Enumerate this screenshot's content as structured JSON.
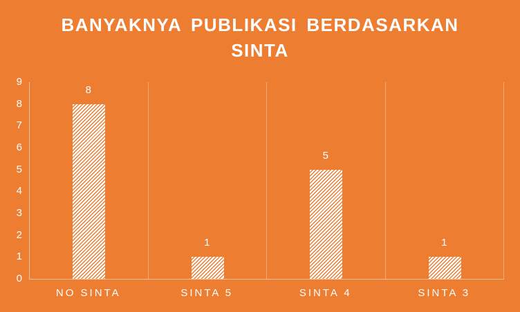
{
  "chart_data": {
    "type": "bar",
    "title": "BANYAKNYA PUBLIKASI BERDASARKAN SINTA",
    "categories": [
      "NO SINTA",
      "SINTA 5",
      "SINTA 4",
      "SINTA 3"
    ],
    "values": [
      8,
      1,
      5,
      1
    ],
    "xlabel": "",
    "ylabel": "",
    "ylim": [
      0,
      9
    ],
    "yticks": [
      0,
      1,
      2,
      3,
      4,
      5,
      6,
      7,
      8,
      9
    ],
    "data_labels": true,
    "legend": "none",
    "grid": "vertical category separators only, no horizontal gridlines"
  },
  "colors": {
    "background": "#ED7D31",
    "text": "#FFFFFF",
    "axis_line": "#F7C3A1",
    "gridline": "#F3AA79",
    "bar_fill": "#FFFFFF",
    "bar_hatch_lines": "#ED7D31"
  }
}
